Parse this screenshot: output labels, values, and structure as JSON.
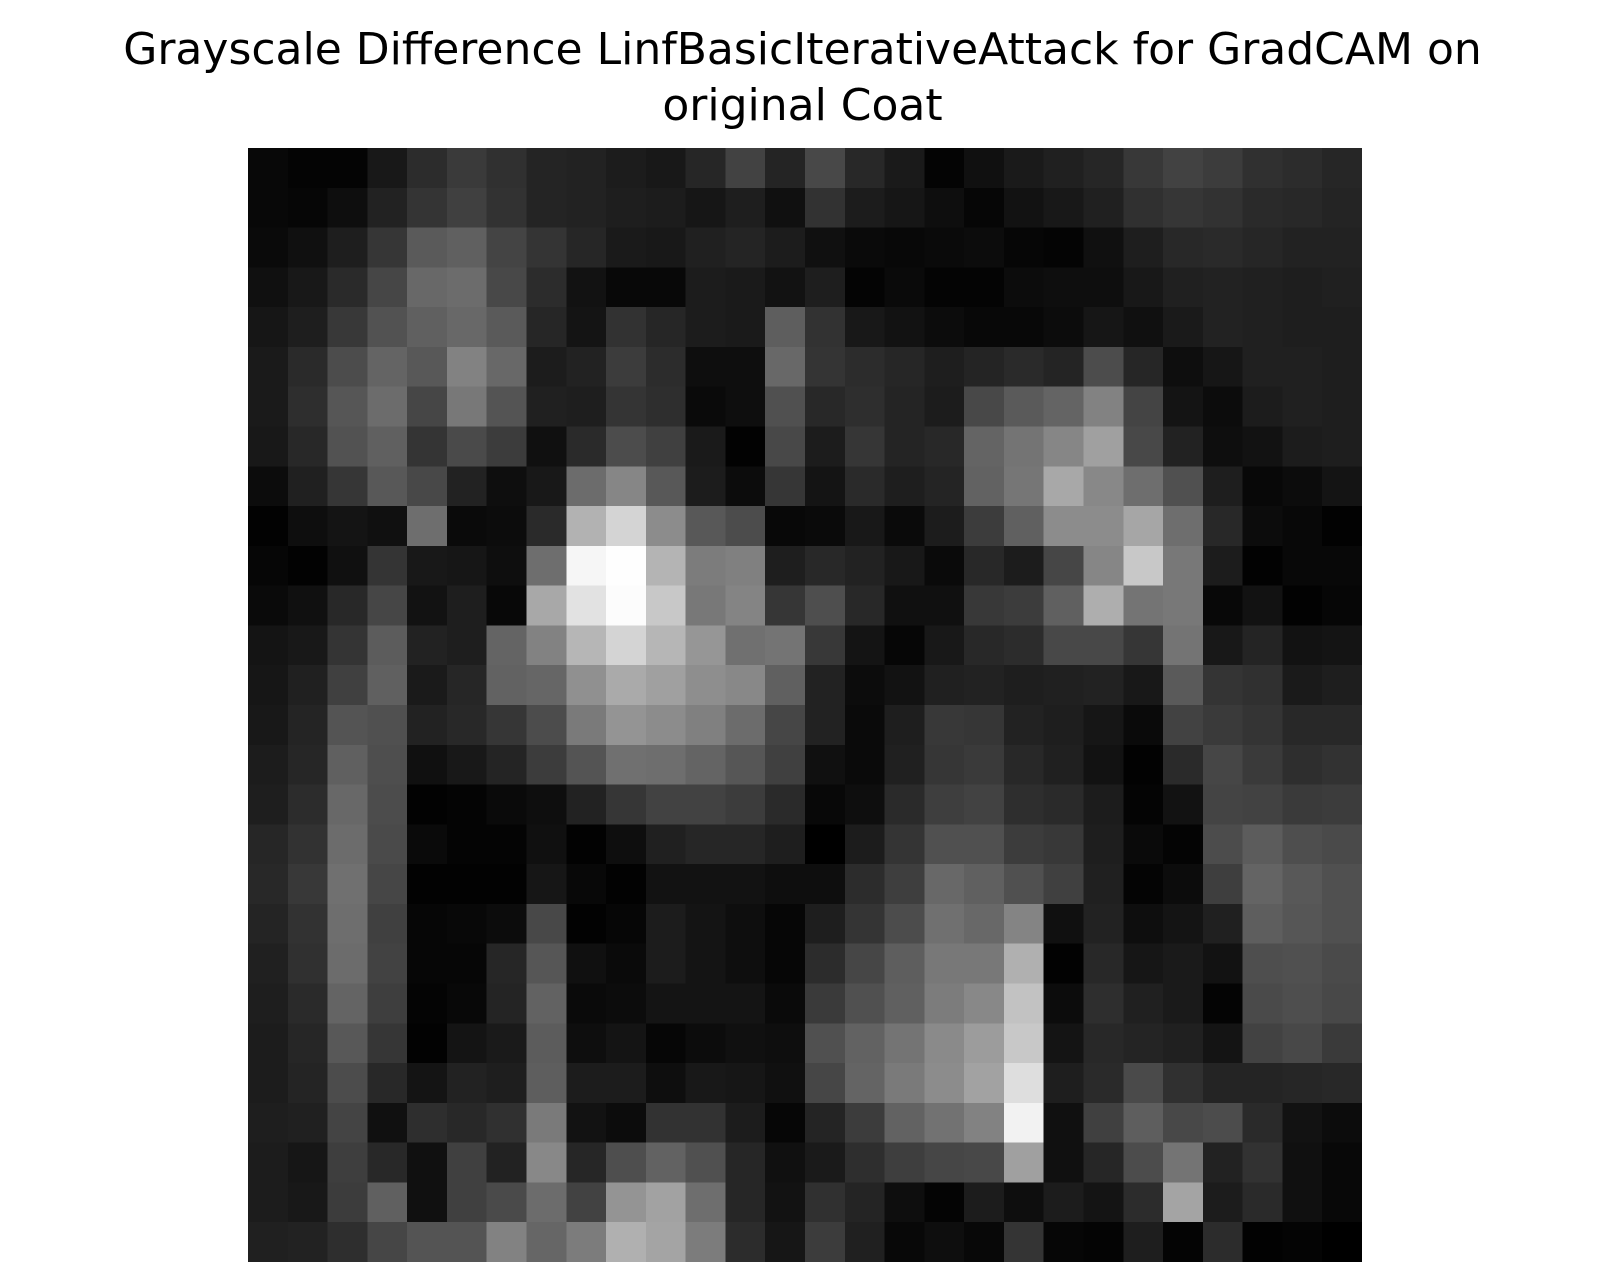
{
  "chart_data": {
    "type": "heatmap",
    "title_lines": [
      "Grayscale Difference LinfBasicIterativeAttack for GradCAM on",
      "original Coat"
    ],
    "colormap": "gray",
    "value_range": [
      0,
      255
    ],
    "axes_visible": false,
    "rows": 28,
    "cols": 28,
    "values": [
      [
        8,
        4,
        4,
        24,
        44,
        58,
        48,
        36,
        34,
        28,
        24,
        38,
        66,
        36,
        72,
        40,
        26,
        4,
        16,
        26,
        32,
        38,
        56,
        66,
        60,
        48,
        44,
        38
      ],
      [
        8,
        6,
        14,
        34,
        52,
        64,
        50,
        36,
        34,
        30,
        28,
        22,
        30,
        16,
        50,
        28,
        22,
        14,
        6,
        18,
        24,
        32,
        48,
        54,
        50,
        42,
        40,
        36
      ],
      [
        10,
        16,
        30,
        54,
        90,
        96,
        68,
        52,
        38,
        26,
        24,
        32,
        36,
        28,
        16,
        10,
        8,
        10,
        12,
        6,
        4,
        16,
        30,
        40,
        42,
        38,
        34,
        34
      ],
      [
        16,
        24,
        42,
        70,
        104,
        108,
        72,
        44,
        18,
        8,
        8,
        28,
        26,
        18,
        30,
        4,
        10,
        4,
        4,
        12,
        14,
        14,
        24,
        32,
        34,
        32,
        30,
        32
      ],
      [
        22,
        30,
        56,
        82,
        96,
        104,
        90,
        38,
        20,
        50,
        38,
        28,
        26,
        94,
        50,
        24,
        18,
        12,
        8,
        8,
        12,
        22,
        16,
        26,
        34,
        32,
        30,
        30
      ],
      [
        26,
        42,
        76,
        100,
        88,
        130,
        104,
        28,
        34,
        60,
        44,
        14,
        14,
        104,
        52,
        44,
        38,
        30,
        36,
        42,
        36,
        76,
        38,
        14,
        22,
        32,
        32,
        30
      ],
      [
        26,
        46,
        86,
        108,
        70,
        120,
        84,
        32,
        30,
        52,
        46,
        10,
        14,
        80,
        40,
        46,
        36,
        28,
        72,
        90,
        100,
        130,
        68,
        20,
        12,
        28,
        32,
        30
      ],
      [
        24,
        40,
        82,
        96,
        52,
        74,
        60,
        16,
        42,
        76,
        64,
        26,
        2,
        72,
        28,
        54,
        36,
        40,
        100,
        116,
        134,
        160,
        72,
        34,
        14,
        18,
        28,
        30
      ],
      [
        12,
        32,
        54,
        88,
        72,
        34,
        14,
        24,
        108,
        134,
        88,
        28,
        12,
        54,
        20,
        42,
        30,
        36,
        98,
        118,
        168,
        136,
        110,
        80,
        30,
        8,
        12,
        20
      ],
      [
        2,
        14,
        20,
        16,
        110,
        10,
        12,
        42,
        178,
        212,
        140,
        88,
        76,
        8,
        10,
        24,
        10,
        28,
        60,
        96,
        140,
        140,
        166,
        110,
        40,
        12,
        8,
        2
      ],
      [
        6,
        2,
        16,
        52,
        24,
        22,
        14,
        110,
        246,
        254,
        180,
        124,
        128,
        30,
        40,
        34,
        24,
        10,
        40,
        28,
        70,
        134,
        200,
        120,
        28,
        2,
        8,
        8
      ],
      [
        10,
        16,
        40,
        70,
        18,
        30,
        8,
        168,
        226,
        252,
        200,
        120,
        132,
        54,
        78,
        40,
        16,
        16,
        56,
        60,
        96,
        174,
        116,
        120,
        8,
        18,
        2,
        6
      ],
      [
        20,
        24,
        52,
        92,
        34,
        30,
        100,
        130,
        182,
        212,
        182,
        150,
        112,
        116,
        56,
        20,
        6,
        24,
        40,
        44,
        72,
        72,
        54,
        116,
        24,
        36,
        18,
        20
      ],
      [
        22,
        32,
        64,
        96,
        26,
        38,
        98,
        102,
        144,
        170,
        160,
        142,
        136,
        96,
        34,
        12,
        18,
        32,
        34,
        30,
        32,
        34,
        24,
        90,
        52,
        48,
        26,
        30
      ],
      [
        24,
        36,
        84,
        80,
        34,
        40,
        54,
        76,
        122,
        148,
        140,
        128,
        108,
        70,
        34,
        10,
        30,
        56,
        54,
        34,
        30,
        22,
        10,
        66,
        58,
        52,
        40,
        40
      ],
      [
        28,
        38,
        96,
        78,
        16,
        24,
        36,
        60,
        84,
        112,
        110,
        100,
        86,
        64,
        16,
        10,
        32,
        54,
        58,
        40,
        32,
        18,
        2,
        42,
        70,
        58,
        46,
        50
      ],
      [
        30,
        44,
        104,
        76,
        2,
        4,
        10,
        14,
        34,
        54,
        66,
        66,
        60,
        42,
        8,
        14,
        42,
        62,
        66,
        46,
        42,
        28,
        4,
        18,
        68,
        66,
        58,
        60
      ],
      [
        38,
        50,
        108,
        74,
        10,
        4,
        4,
        16,
        2,
        14,
        32,
        38,
        38,
        30,
        0,
        28,
        52,
        80,
        80,
        60,
        56,
        30,
        10,
        4,
        76,
        92,
        78,
        74
      ],
      [
        40,
        56,
        112,
        70,
        2,
        2,
        2,
        22,
        8,
        2,
        18,
        18,
        18,
        14,
        14,
        44,
        62,
        104,
        96,
        80,
        64,
        32,
        4,
        12,
        62,
        100,
        88,
        80
      ],
      [
        36,
        50,
        110,
        64,
        6,
        8,
        12,
        72,
        2,
        6,
        28,
        20,
        14,
        6,
        30,
        52,
        76,
        112,
        104,
        132,
        16,
        34,
        14,
        20,
        32,
        94,
        86,
        80
      ],
      [
        32,
        48,
        108,
        66,
        6,
        6,
        38,
        86,
        16,
        10,
        28,
        20,
        14,
        6,
        44,
        70,
        94,
        120,
        120,
        176,
        2,
        40,
        22,
        26,
        18,
        78,
        80,
        74
      ],
      [
        30,
        42,
        100,
        62,
        4,
        8,
        36,
        98,
        10,
        12,
        20,
        20,
        20,
        10,
        58,
        80,
        96,
        124,
        136,
        194,
        12,
        46,
        32,
        26,
        4,
        74,
        78,
        72
      ],
      [
        28,
        38,
        88,
        54,
        2,
        20,
        26,
        92,
        14,
        20,
        6,
        12,
        16,
        14,
        80,
        98,
        116,
        138,
        156,
        200,
        20,
        40,
        36,
        32,
        20,
        66,
        72,
        58
      ],
      [
        28,
        36,
        76,
        40,
        20,
        34,
        30,
        94,
        28,
        28,
        14,
        24,
        22,
        16,
        70,
        100,
        122,
        140,
        162,
        222,
        30,
        42,
        74,
        48,
        36,
        36,
        38,
        40
      ],
      [
        30,
        32,
        68,
        16,
        46,
        40,
        48,
        122,
        18,
        12,
        50,
        50,
        28,
        6,
        36,
        60,
        98,
        114,
        130,
        242,
        16,
        64,
        94,
        72,
        76,
        42,
        18,
        12
      ],
      [
        28,
        22,
        62,
        40,
        16,
        64,
        34,
        136,
        38,
        78,
        98,
        80,
        38,
        16,
        26,
        46,
        62,
        70,
        72,
        160,
        16,
        38,
        76,
        116,
        34,
        50,
        16,
        8
      ],
      [
        28,
        24,
        60,
        96,
        16,
        64,
        74,
        108,
        66,
        148,
        162,
        110,
        38,
        18,
        48,
        36,
        14,
        4,
        28,
        14,
        28,
        20,
        44,
        164,
        28,
        42,
        16,
        8
      ],
      [
        32,
        34,
        46,
        70,
        84,
        84,
        130,
        102,
        124,
        176,
        164,
        124,
        44,
        22,
        60,
        32,
        8,
        14,
        8,
        52,
        6,
        4,
        30,
        4,
        44,
        2,
        4,
        0
      ]
    ]
  }
}
